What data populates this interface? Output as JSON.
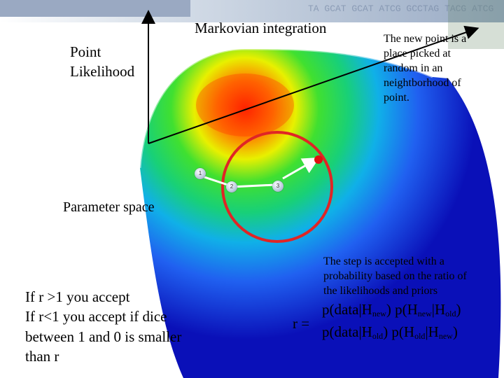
{
  "title": "Markovian integration",
  "axis_y": [
    "Point",
    "Likelihood"
  ],
  "axis_x": "Parameter space",
  "proposal_note": [
    "The  new point is a",
    "place picked at",
    "random in an",
    "neightborhood of",
    "point."
  ],
  "step_note": [
    "The step is accepted with a",
    "probability based on the ratio of",
    "the likelihoods and priors"
  ],
  "acceptance_rule": [
    "If r >1 you accept",
    "If r<1 you accept if dice",
    "between 1 and 0 is smaller",
    "than r"
  ],
  "ratio": {
    "lhs": "r  =",
    "numerator": [
      {
        "t": "p(data|H"
      },
      {
        "sub": "new"
      },
      {
        "t": ") p(H"
      },
      {
        "sub": "new"
      },
      {
        "t": "|H"
      },
      {
        "sub": "old"
      },
      {
        "t": ")"
      }
    ],
    "denominator": [
      {
        "t": "p(data|H"
      },
      {
        "sub": "old"
      },
      {
        "t": ") p(H"
      },
      {
        "sub": "old"
      },
      {
        "t": "|H"
      },
      {
        "sub": "new"
      },
      {
        "t": ")"
      }
    ]
  },
  "markers": [
    "1",
    "2",
    "3"
  ],
  "header_strip_text": "TA GCAT GCAT ATCG GCCTAG TACG ATCG",
  "colors": {
    "circle": "#e02525",
    "arrow": "#ffffff",
    "proposal_point": "#e01010",
    "axis": "#000000"
  }
}
